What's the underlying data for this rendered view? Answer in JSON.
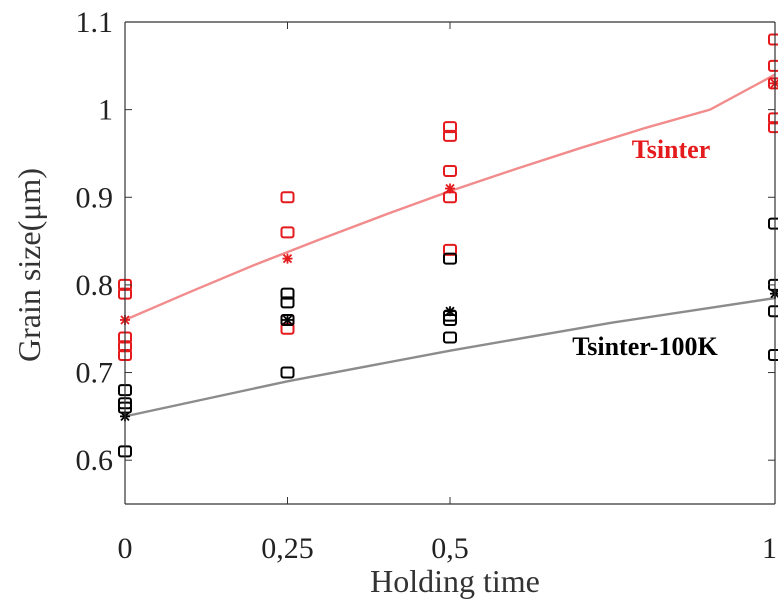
{
  "chart_data": {
    "type": "scatter",
    "xlabel": "Holding time",
    "ylabel": "Grain size(μm)",
    "xlim": [
      0,
      1
    ],
    "ylim": [
      0.55,
      1.1
    ],
    "x_ticks": [
      {
        "value": 0,
        "label": "0"
      },
      {
        "value": 0.25,
        "label": "0,25"
      },
      {
        "value": 0.5,
        "label": "0,5"
      },
      {
        "value": 1,
        "label": "1"
      }
    ],
    "y_ticks": [
      {
        "value": 0.6,
        "label": "0.6"
      },
      {
        "value": 0.7,
        "label": "0.7"
      },
      {
        "value": 0.8,
        "label": "0.8"
      },
      {
        "value": 0.9,
        "label": "0.9"
      },
      {
        "value": 1.0,
        "label": "1"
      },
      {
        "value": 1.1,
        "label": "1.1"
      }
    ],
    "grid": false,
    "annotations": [
      {
        "text": "Tsinter",
        "color": "#e41a1c",
        "x": 0.84,
        "y": 0.945
      },
      {
        "text": "Tsinter-100K",
        "color": "#000000",
        "x": 0.8,
        "y": 0.72
      }
    ],
    "series": [
      {
        "color": "#e41a1c",
        "line_color": "#f28b8b",
        "markers": [
          [
            0,
            0.8
          ],
          [
            0,
            0.79
          ],
          [
            0,
            0.74
          ],
          [
            0,
            0.73
          ],
          [
            0,
            0.72
          ],
          [
            0.25,
            0.9
          ],
          [
            0.25,
            0.86
          ],
          [
            0.25,
            0.76
          ],
          [
            0.25,
            0.75
          ],
          [
            0.5,
            0.98
          ],
          [
            0.5,
            0.97
          ],
          [
            0.5,
            0.93
          ],
          [
            0.5,
            0.9
          ],
          [
            0.5,
            0.84
          ],
          [
            1,
            1.08
          ],
          [
            1,
            1.05
          ],
          [
            1,
            1.03
          ],
          [
            1,
            0.99
          ],
          [
            1,
            0.98
          ]
        ],
        "means": [
          [
            0,
            0.76
          ],
          [
            0.25,
            0.83
          ],
          [
            0.5,
            0.91
          ],
          [
            1,
            1.03
          ]
        ],
        "fit": [
          [
            0,
            0.76
          ],
          [
            0.1,
            0.792
          ],
          [
            0.2,
            0.823
          ],
          [
            0.3,
            0.852
          ],
          [
            0.4,
            0.88
          ],
          [
            0.5,
            0.907
          ],
          [
            0.6,
            0.932
          ],
          [
            0.7,
            0.956
          ],
          [
            0.8,
            0.979
          ],
          [
            0.9,
            1.0
          ],
          [
            1,
            1.04
          ]
        ]
      },
      {
        "color": "#000000",
        "line_color": "#8c8c8c",
        "markers": [
          [
            0,
            0.68
          ],
          [
            0,
            0.665
          ],
          [
            0,
            0.66
          ],
          [
            0,
            0.61
          ],
          [
            0.25,
            0.79
          ],
          [
            0.25,
            0.78
          ],
          [
            0.25,
            0.76
          ],
          [
            0.25,
            0.7
          ],
          [
            0.5,
            0.83
          ],
          [
            0.5,
            0.765
          ],
          [
            0.5,
            0.76
          ],
          [
            0.5,
            0.74
          ],
          [
            1,
            0.87
          ],
          [
            1,
            0.8
          ],
          [
            1,
            0.77
          ],
          [
            1,
            0.72
          ]
        ],
        "means": [
          [
            0,
            0.65
          ],
          [
            0.25,
            0.76
          ],
          [
            0.5,
            0.77
          ],
          [
            1,
            0.79
          ]
        ],
        "fit": [
          [
            0,
            0.65
          ],
          [
            0.25,
            0.69
          ],
          [
            0.5,
            0.725
          ],
          [
            0.75,
            0.757
          ],
          [
            1,
            0.785
          ]
        ]
      }
    ]
  }
}
